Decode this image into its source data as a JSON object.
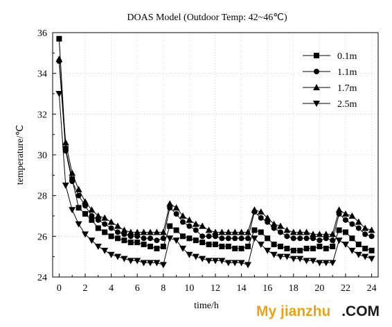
{
  "chart_data": {
    "type": "line",
    "title": "DOAS Model (Outdoor Temp: 42~46℃)",
    "xlabel": "time/h",
    "ylabel": "temperature/℃",
    "xlim": [
      -0.5,
      24.5
    ],
    "ylim": [
      24,
      36
    ],
    "xticks": [
      0,
      2,
      4,
      6,
      8,
      10,
      12,
      14,
      16,
      18,
      20,
      22,
      24
    ],
    "yticks": [
      24,
      26,
      28,
      30,
      32,
      34,
      36
    ],
    "legend_position": "top-right",
    "x": [
      0,
      0.5,
      1,
      1.5,
      2,
      2.5,
      3,
      3.5,
      4,
      4.5,
      5,
      5.5,
      6,
      6.5,
      7,
      7.5,
      8,
      8.5,
      9,
      9.5,
      10,
      10.5,
      11,
      11.5,
      12,
      12.5,
      13,
      13.5,
      14,
      14.5,
      15,
      15.5,
      16,
      16.5,
      17,
      17.5,
      18,
      18.5,
      19,
      19.5,
      20,
      20.5,
      21,
      21.5,
      22,
      22.5,
      23,
      23.5,
      24
    ],
    "series": [
      {
        "name": "0.1m",
        "marker": "square",
        "values": [
          35.7,
          30.3,
          28.8,
          27.4,
          27.1,
          26.8,
          26.4,
          26.2,
          26.0,
          25.9,
          25.8,
          25.7,
          25.7,
          25.6,
          25.5,
          25.4,
          25.5,
          26.5,
          26.3,
          26.0,
          25.9,
          25.8,
          25.7,
          25.6,
          25.6,
          25.5,
          25.5,
          25.4,
          25.4,
          25.5,
          26.3,
          26.2,
          25.9,
          25.6,
          25.5,
          25.4,
          25.3,
          25.3,
          25.4,
          25.4,
          25.5,
          25.4,
          25.5,
          26.3,
          26.2,
          25.9,
          25.6,
          25.4,
          25.3
        ]
      },
      {
        "name": "1.1m",
        "marker": "circle",
        "values": [
          34.6,
          30.2,
          28.7,
          28.0,
          27.5,
          27.0,
          26.8,
          26.6,
          26.4,
          26.2,
          26.1,
          26.0,
          26.0,
          25.9,
          25.9,
          25.8,
          25.9,
          27.4,
          27.1,
          26.7,
          26.5,
          26.3,
          26.0,
          26.0,
          26.0,
          25.9,
          25.9,
          25.9,
          25.9,
          25.9,
          27.2,
          26.9,
          26.7,
          26.4,
          26.2,
          26.0,
          25.9,
          25.9,
          25.9,
          25.9,
          25.8,
          25.9,
          25.8,
          27.1,
          26.8,
          26.6,
          26.4,
          26.1,
          26.0
        ]
      },
      {
        "name": "1.7m",
        "marker": "triangle-up",
        "values": [
          34.7,
          30.6,
          29.1,
          28.3,
          27.7,
          27.3,
          27.0,
          26.9,
          26.7,
          26.5,
          26.3,
          26.2,
          26.2,
          26.2,
          26.2,
          26.2,
          26.2,
          27.6,
          27.4,
          27.0,
          26.8,
          26.6,
          26.5,
          26.3,
          26.2,
          26.2,
          26.2,
          26.2,
          26.2,
          26.2,
          27.3,
          27.2,
          26.9,
          26.6,
          26.5,
          26.3,
          26.2,
          26.2,
          26.2,
          26.1,
          26.1,
          26.1,
          26.1,
          27.3,
          27.1,
          27.0,
          26.7,
          26.4,
          26.3
        ]
      },
      {
        "name": "2.5m",
        "marker": "triangle-down",
        "values": [
          33.0,
          28.5,
          27.3,
          26.6,
          26.1,
          25.8,
          25.5,
          25.3,
          25.1,
          25.0,
          24.9,
          24.8,
          24.8,
          24.7,
          24.7,
          24.7,
          24.6,
          25.9,
          25.8,
          25.4,
          25.1,
          25.0,
          24.9,
          24.8,
          24.8,
          24.8,
          24.7,
          24.7,
          24.7,
          24.6,
          25.9,
          25.6,
          25.3,
          25.1,
          25.0,
          25.0,
          24.9,
          24.9,
          24.8,
          24.8,
          24.7,
          24.7,
          24.7,
          25.8,
          25.6,
          25.3,
          25.1,
          25.0,
          24.9
        ]
      }
    ]
  },
  "watermark": {
    "text_part1": "My jianzhu",
    "text_part2": ".COM",
    "color1": "#e8a419",
    "color2": "#1a1a1a"
  }
}
